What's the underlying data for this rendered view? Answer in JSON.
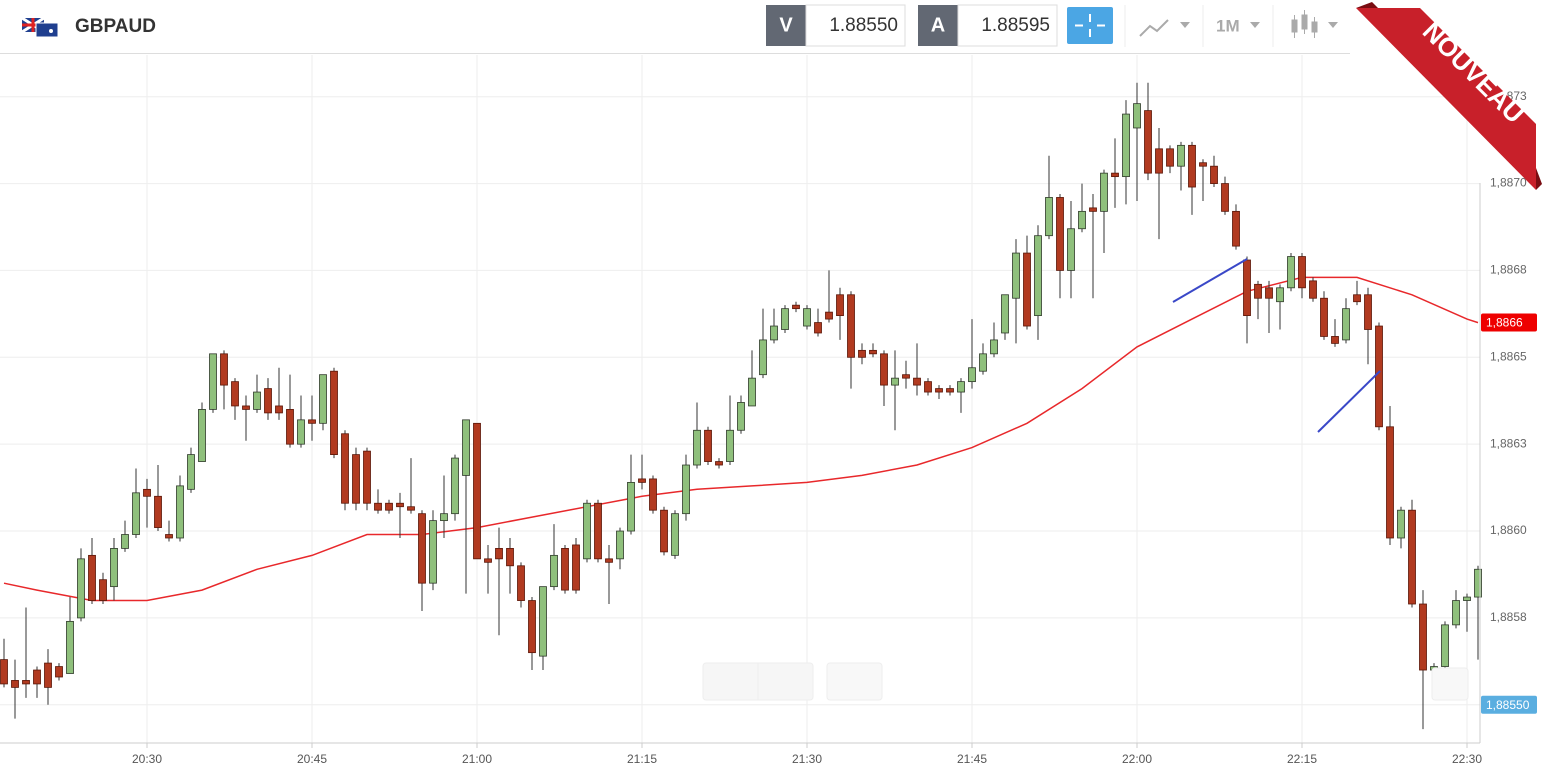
{
  "header": {
    "symbol": "GBPAUD",
    "bid_label": "V",
    "bid": "1.88550",
    "ask_label": "A",
    "ask": "1.88595",
    "timeframe": "1M",
    "badge": "NOUVEAU"
  },
  "chart_data": {
    "type": "candlestick",
    "x": [
      "20:17",
      "20:18",
      "20:19",
      "20:20",
      "20:21",
      "20:22",
      "20:23",
      "20:24",
      "20:25",
      "20:26",
      "20:27",
      "20:28",
      "20:29",
      "20:30",
      "20:31",
      "20:32",
      "20:33",
      "20:34",
      "20:35",
      "20:36",
      "20:37",
      "20:38",
      "20:39",
      "20:40",
      "20:41",
      "20:42",
      "20:43",
      "20:44",
      "20:45",
      "20:46",
      "20:47",
      "20:48",
      "20:49",
      "20:50",
      "20:51",
      "20:52",
      "20:53",
      "20:54",
      "20:55",
      "20:56",
      "20:57",
      "20:58",
      "20:59",
      "21:00",
      "21:01",
      "21:02",
      "21:03",
      "21:04",
      "21:05",
      "21:06",
      "21:07",
      "21:08",
      "21:09",
      "21:10",
      "21:11",
      "21:12",
      "21:13",
      "21:14",
      "21:15",
      "21:16",
      "21:17",
      "21:18",
      "21:19",
      "21:20",
      "21:21",
      "21:22",
      "21:23",
      "21:24",
      "21:25",
      "21:26",
      "21:27",
      "21:28",
      "21:29",
      "21:30",
      "21:31",
      "21:32",
      "21:33",
      "21:34",
      "21:35",
      "21:36",
      "21:37",
      "21:38",
      "21:39",
      "21:40",
      "21:41",
      "21:42",
      "21:43",
      "21:44",
      "21:45",
      "21:46",
      "21:47",
      "21:48",
      "21:49",
      "21:50",
      "21:51",
      "21:52",
      "21:53",
      "21:54",
      "21:55",
      "21:56",
      "21:57",
      "21:58",
      "21:59",
      "22:00",
      "22:01",
      "22:02",
      "22:03",
      "22:04",
      "22:05",
      "22:06",
      "22:07",
      "22:08",
      "22:09",
      "22:10",
      "22:11",
      "22:12",
      "22:13",
      "22:14",
      "22:15",
      "22:16",
      "22:17",
      "22:18",
      "22:19",
      "22:20",
      "22:21",
      "22:22",
      "22:23",
      "22:24",
      "22:25",
      "22:26",
      "22:27",
      "22:28",
      "22:29",
      "22:30",
      "22:31"
    ],
    "open": [
      1.88563,
      1.88557,
      1.88557,
      1.8856,
      1.88562,
      1.88561,
      1.88559,
      1.88575,
      1.88593,
      1.88586,
      1.88584,
      1.88595,
      1.88599,
      1.88612,
      1.8861,
      1.88599,
      1.88598,
      1.88612,
      1.8862,
      1.88635,
      1.88651,
      1.88643,
      1.88636,
      1.88635,
      1.88641,
      1.88636,
      1.88635,
      1.88625,
      1.88632,
      1.88631,
      1.88646,
      1.88628,
      1.88622,
      1.88623,
      1.88608,
      1.88608,
      1.88608,
      1.88607,
      1.88605,
      1.88585,
      1.88603,
      1.88605,
      1.88616,
      1.88631,
      1.88592,
      1.88595,
      1.88595,
      1.8859,
      1.8858,
      1.88564,
      1.88584,
      1.88595,
      1.88596,
      1.88592,
      1.88608,
      1.88592,
      1.88592,
      1.886,
      1.88615,
      1.88615,
      1.88606,
      1.88593,
      1.88605,
      1.88619,
      1.88629,
      1.8862,
      1.8862,
      1.88629,
      1.88636,
      1.88645,
      1.88655,
      1.88658,
      1.88665,
      1.88659,
      1.8866,
      1.88663,
      1.88668,
      1.88668,
      1.88652,
      1.88652,
      1.88651,
      1.88642,
      1.88645,
      1.88644,
      1.88643,
      1.88641,
      1.88641,
      1.8864,
      1.88643,
      1.88646,
      1.88651,
      1.88657,
      1.88667,
      1.8868,
      1.88662,
      1.88685,
      1.88696,
      1.88675,
      1.88687,
      1.88693,
      1.88692,
      1.88703,
      1.88702,
      1.88716,
      1.88721,
      1.8871,
      1.8871,
      1.88705,
      1.88711,
      1.88706,
      1.88705,
      1.887,
      1.88692,
      1.88678,
      1.88671,
      1.8867,
      1.88666,
      1.8867,
      1.88679,
      1.88672,
      1.88667,
      1.88656,
      1.88655,
      1.88668,
      1.88668,
      1.88659,
      1.8863,
      1.88598,
      1.88606,
      1.88579,
      1.8856,
      1.88561,
      1.88573,
      1.8858,
      1.88581
    ],
    "high": [
      1.88569,
      1.88563,
      1.88578,
      1.88561,
      1.88566,
      1.88562,
      1.88581,
      1.88595,
      1.88598,
      1.88588,
      1.88598,
      1.88603,
      1.88618,
      1.88615,
      1.88619,
      1.88603,
      1.88616,
      1.88624,
      1.88637,
      1.88651,
      1.88652,
      1.88644,
      1.88639,
      1.88645,
      1.88644,
      1.88647,
      1.88645,
      1.88639,
      1.88639,
      1.88645,
      1.88647,
      1.88629,
      1.88624,
      1.88624,
      1.88612,
      1.88609,
      1.88611,
      1.88621,
      1.88606,
      1.88606,
      1.88616,
      1.88622,
      1.88632,
      1.88631,
      1.88596,
      1.88601,
      1.88598,
      1.88591,
      1.88581,
      1.88584,
      1.88602,
      1.88596,
      1.88598,
      1.88609,
      1.88609,
      1.88596,
      1.88601,
      1.88622,
      1.88622,
      1.88616,
      1.88607,
      1.88606,
      1.88622,
      1.88637,
      1.8863,
      1.88621,
      1.88639,
      1.88639,
      1.88652,
      1.88664,
      1.88664,
      1.88665,
      1.88666,
      1.88665,
      1.88664,
      1.88675,
      1.8867,
      1.88669,
      1.88654,
      1.88654,
      1.88652,
      1.88652,
      1.88649,
      1.88654,
      1.88644,
      1.88642,
      1.88642,
      1.88644,
      1.88661,
      1.88654,
      1.8866,
      1.88668,
      1.88684,
      1.88685,
      1.88688,
      1.88708,
      1.88697,
      1.88695,
      1.887,
      1.88697,
      1.88704,
      1.88713,
      1.88724,
      1.88729,
      1.88729,
      1.88716,
      1.88711,
      1.88712,
      1.88712,
      1.88707,
      1.88708,
      1.88702,
      1.88694,
      1.88679,
      1.88672,
      1.88672,
      1.88671,
      1.8868,
      1.8868,
      1.88673,
      1.88669,
      1.88661,
      1.88667,
      1.88672,
      1.8867,
      1.8866,
      1.88636,
      1.88607,
      1.88609,
      1.88583,
      1.88562,
      1.88574,
      1.88583,
      1.88582,
      1.8859
    ],
    "low": [
      1.88555,
      1.88546,
      1.88552,
      1.88552,
      1.8855,
      1.88557,
      1.88559,
      1.88574,
      1.88579,
      1.88579,
      1.8858,
      1.88594,
      1.88598,
      1.88601,
      1.886,
      1.88597,
      1.88597,
      1.88611,
      1.8862,
      1.88634,
      1.88635,
      1.88632,
      1.88626,
      1.88634,
      1.88632,
      1.88632,
      1.88624,
      1.88624,
      1.88626,
      1.88629,
      1.88621,
      1.88606,
      1.88606,
      1.88606,
      1.88605,
      1.88605,
      1.88598,
      1.88605,
      1.88577,
      1.88583,
      1.88598,
      1.88603,
      1.88582,
      1.88592,
      1.88582,
      1.8857,
      1.88582,
      1.88578,
      1.8856,
      1.8856,
      1.88583,
      1.88582,
      1.88582,
      1.88591,
      1.88591,
      1.88579,
      1.88589,
      1.88599,
      1.88612,
      1.88605,
      1.88593,
      1.88592,
      1.88603,
      1.88618,
      1.88619,
      1.88618,
      1.88619,
      1.88628,
      1.88636,
      1.88644,
      1.88654,
      1.88657,
      1.88663,
      1.88658,
      1.88656,
      1.8866,
      1.88655,
      1.88641,
      1.88648,
      1.8865,
      1.88636,
      1.88629,
      1.88641,
      1.88639,
      1.88639,
      1.88638,
      1.88639,
      1.88634,
      1.88641,
      1.88645,
      1.8865,
      1.88655,
      1.88654,
      1.88658,
      1.88655,
      1.88684,
      1.88667,
      1.88667,
      1.88686,
      1.88667,
      1.8868,
      1.88693,
      1.88694,
      1.88695,
      1.88701,
      1.88684,
      1.88703,
      1.88698,
      1.88691,
      1.88695,
      1.88699,
      1.88691,
      1.88681,
      1.88654,
      1.88661,
      1.88657,
      1.88658,
      1.88669,
      1.88667,
      1.88666,
      1.88655,
      1.88653,
      1.88654,
      1.88665,
      1.88648,
      1.88629,
      1.88596,
      1.88595,
      1.88578,
      1.88543,
      1.88559,
      1.8856,
      1.88572,
      1.88571,
      1.88563
    ],
    "close": [
      1.88556,
      1.88555,
      1.88556,
      1.88556,
      1.88555,
      1.88558,
      1.88574,
      1.88592,
      1.8858,
      1.8858,
      1.88595,
      1.88599,
      1.88611,
      1.8861,
      1.88601,
      1.88598,
      1.88613,
      1.88622,
      1.88635,
      1.88651,
      1.88642,
      1.88636,
      1.88635,
      1.8864,
      1.88634,
      1.88634,
      1.88625,
      1.88632,
      1.88631,
      1.88645,
      1.88622,
      1.88608,
      1.88608,
      1.88608,
      1.88606,
      1.88606,
      1.88607,
      1.88606,
      1.88585,
      1.88603,
      1.88605,
      1.88621,
      1.88632,
      1.88592,
      1.88591,
      1.88592,
      1.8859,
      1.8858,
      1.88565,
      1.88584,
      1.88593,
      1.88583,
      1.88583,
      1.88608,
      1.88592,
      1.88591,
      1.886,
      1.88614,
      1.88614,
      1.88606,
      1.88594,
      1.88605,
      1.88619,
      1.88629,
      1.8862,
      1.88619,
      1.88629,
      1.88637,
      1.88644,
      1.88655,
      1.88659,
      1.88664,
      1.88664,
      1.88664,
      1.88657,
      1.88661,
      1.88662,
      1.8865,
      1.8865,
      1.88651,
      1.88642,
      1.88644,
      1.88644,
      1.88642,
      1.8864,
      1.8864,
      1.8864,
      1.88643,
      1.88647,
      1.88651,
      1.88655,
      1.88668,
      1.8868,
      1.88659,
      1.88685,
      1.88696,
      1.88675,
      1.88687,
      1.88692,
      1.88692,
      1.88703,
      1.88702,
      1.8872,
      1.88723,
      1.88703,
      1.88703,
      1.88705,
      1.88711,
      1.88699,
      1.88705,
      1.887,
      1.88692,
      1.88682,
      1.88662,
      1.88667,
      1.88667,
      1.8867,
      1.88679,
      1.8867,
      1.88667,
      1.88656,
      1.88654,
      1.88664,
      1.88666,
      1.88658,
      1.8863,
      1.88598,
      1.88606,
      1.88579,
      1.8856,
      1.88561,
      1.88573,
      1.8858,
      1.88581,
      1.88589
    ],
    "up_color": "#8fc07c",
    "down_color": "#b13a20",
    "moving_average": {
      "color": "#e8282b",
      "x": [
        "20:17",
        "20:20",
        "20:25",
        "20:30",
        "20:35",
        "20:40",
        "20:45",
        "20:50",
        "20:55",
        "21:00",
        "21:05",
        "21:10",
        "21:15",
        "21:20",
        "21:25",
        "21:30",
        "21:35",
        "21:40",
        "21:45",
        "21:50",
        "21:55",
        "22:00",
        "22:05",
        "22:10",
        "22:15",
        "22:20",
        "22:25",
        "22:30",
        "22:31"
      ],
      "values": [
        1.88585,
        1.88583,
        1.8858,
        1.8858,
        1.88583,
        1.88589,
        1.88593,
        1.88599,
        1.88599,
        1.88601,
        1.88604,
        1.88607,
        1.8861,
        1.88612,
        1.88613,
        1.88614,
        1.88616,
        1.88619,
        1.88624,
        1.88631,
        1.88641,
        1.88653,
        1.88661,
        1.88669,
        1.88673,
        1.88673,
        1.88668,
        1.88661,
        1.8866
      ]
    },
    "price_markers": [
      {
        "value": 1.8866,
        "label": "1,8866",
        "color": "#ee0000"
      },
      {
        "value": 1.8855,
        "label": "1,88550",
        "color": "#5aaee0"
      }
    ],
    "xlim": [
      "20:17",
      "22:31"
    ],
    "xticks": [
      "20:30",
      "20:45",
      "21:00",
      "21:15",
      "21:30",
      "21:45",
      "22:00",
      "22:15",
      "22:30"
    ],
    "ylim": [
      1.88539,
      1.88737
    ],
    "yticks": [
      {
        "value": 1.8855,
        "label": "1,8855"
      },
      {
        "value": 1.88575,
        "label": "1,8858"
      },
      {
        "value": 1.886,
        "label": "1,8860"
      },
      {
        "value": 1.88625,
        "label": "1,8863"
      },
      {
        "value": 1.8865,
        "label": "1,8865"
      },
      {
        "value": 1.88675,
        "label": "1,8868"
      },
      {
        "value": 1.887,
        "label": "1,8870"
      },
      {
        "value": 1.88725,
        "label": "1,8873"
      }
    ],
    "grid": true
  }
}
